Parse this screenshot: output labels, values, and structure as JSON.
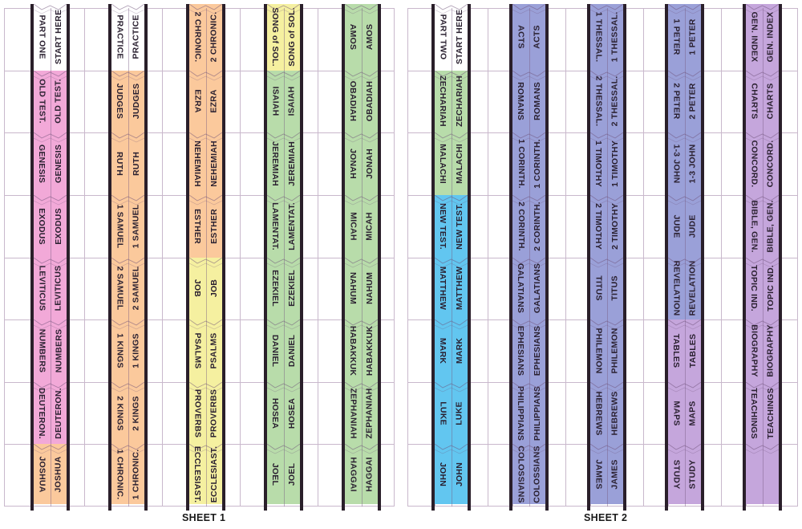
{
  "colors": {
    "white": "#ffffff",
    "pink": "#f2a9d8",
    "orange": "#fbc99c",
    "yellow": "#f5f0a0",
    "green": "#b8dcaa",
    "blue": "#62c6f0",
    "indigo": "#9aa0d8",
    "lavender": "#c5a6dc",
    "strip_border": "#2a1f2a",
    "grid_line": "#c9b8cc"
  },
  "sheets": [
    {
      "label": "SHEET 1",
      "strips": [
        {
          "tabs": [
            {
              "left": "PART ONE",
              "right": "START HERE",
              "color": "white"
            },
            {
              "left": "OLD TEST.",
              "right": "OLD TEST.",
              "color": "pink"
            },
            {
              "left": "GENESIS",
              "right": "GENESIS",
              "color": "pink"
            },
            {
              "left": "EXODUS",
              "right": "EXODUS",
              "color": "pink"
            },
            {
              "left": "LEVITICUS",
              "right": "LEVITICUS",
              "color": "pink"
            },
            {
              "left": "NUMBERS",
              "right": "NUMBERS",
              "color": "pink"
            },
            {
              "left": "DEUTERON.",
              "right": "DEUTERON.",
              "color": "pink"
            },
            {
              "left": "JOSHUA",
              "right": "JOSHUA",
              "color": "orange"
            }
          ]
        },
        {
          "tabs": [
            {
              "left": "PRACTICE",
              "right": "PRACTICE",
              "color": "white"
            },
            {
              "left": "JUDGES",
              "right": "JUDGES",
              "color": "orange"
            },
            {
              "left": "RUTH",
              "right": "RUTH",
              "color": "orange"
            },
            {
              "left": "1 SAMUEL",
              "right": "1 SAMUEL",
              "color": "orange"
            },
            {
              "left": "2 SAMUEL",
              "right": "2 SAMUEL",
              "color": "orange"
            },
            {
              "left": "1 KINGS",
              "right": "1 KINGS",
              "color": "orange"
            },
            {
              "left": "2 KINGS",
              "right": "2 KINGS",
              "color": "orange"
            },
            {
              "left": "1 CHRONIC.",
              "right": "1 CHRONIC.",
              "color": "orange"
            }
          ]
        },
        {
          "tabs": [
            {
              "left": "2 CHRONIC.",
              "right": "2 CHRONIC.",
              "color": "orange"
            },
            {
              "left": "EZRA",
              "right": "EZRA",
              "color": "orange"
            },
            {
              "left": "NEHEMIAH",
              "right": "NEHEMIAH",
              "color": "orange"
            },
            {
              "left": "ESTHER",
              "right": "ESTHER",
              "color": "orange"
            },
            {
              "left": "JOB",
              "right": "JOB",
              "color": "yellow"
            },
            {
              "left": "PSALMS",
              "right": "PSALMS",
              "color": "yellow"
            },
            {
              "left": "PROVERBS",
              "right": "PROVERBS",
              "color": "yellow"
            },
            {
              "left": "ECCLESIAST.",
              "right": "ECCLESIAST.",
              "color": "yellow"
            }
          ]
        },
        {
          "tabs": [
            {
              "left": "SONG of SOL.",
              "right": "SONG of SOL.",
              "color": "yellow"
            },
            {
              "left": "ISAIAH",
              "right": "ISAIAH",
              "color": "green"
            },
            {
              "left": "JEREMIAH",
              "right": "JEREMIAH",
              "color": "green"
            },
            {
              "left": "LAMENTAT.",
              "right": "LAMENTAT.",
              "color": "green"
            },
            {
              "left": "EZEKIEL",
              "right": "EZEKIEL",
              "color": "green"
            },
            {
              "left": "DANIEL",
              "right": "DANIEL",
              "color": "green"
            },
            {
              "left": "HOSEA",
              "right": "HOSEA",
              "color": "green"
            },
            {
              "left": "JOEL",
              "right": "JOEL",
              "color": "green"
            }
          ]
        },
        {
          "tabs": [
            {
              "left": "AMOS",
              "right": "AMOS",
              "color": "green"
            },
            {
              "left": "OBADIAH",
              "right": "OBADIAH",
              "color": "green"
            },
            {
              "left": "JONAH",
              "right": "JONAH",
              "color": "green"
            },
            {
              "left": "MICAH",
              "right": "MICAH",
              "color": "green"
            },
            {
              "left": "NAHUM",
              "right": "NAHUM",
              "color": "green"
            },
            {
              "left": "HABAKKUK",
              "right": "HABAKKUK",
              "color": "green"
            },
            {
              "left": "ZEPHANIAH",
              "right": "ZEPHANIAH",
              "color": "green"
            },
            {
              "left": "HAGGAI",
              "right": "HAGGAI",
              "color": "green"
            }
          ]
        }
      ]
    },
    {
      "label": "SHEET 2",
      "strips": [
        {
          "tabs": [
            {
              "left": "PART TWO",
              "right": "START HERE",
              "color": "white"
            },
            {
              "left": "ZECHARIAH",
              "right": "ZECHARIAH",
              "color": "green"
            },
            {
              "left": "MALACHI",
              "right": "MALACHI",
              "color": "green"
            },
            {
              "left": "NEW TEST.",
              "right": "NEW TEST.",
              "color": "blue"
            },
            {
              "left": "MATTHEW",
              "right": "MATTHEW",
              "color": "blue"
            },
            {
              "left": "MARK",
              "right": "MARK",
              "color": "blue"
            },
            {
              "left": "LUKE",
              "right": "LUKE",
              "color": "blue"
            },
            {
              "left": "JOHN",
              "right": "JOHN",
              "color": "blue"
            }
          ]
        },
        {
          "tabs": [
            {
              "left": "ACTS",
              "right": "ACTS",
              "color": "indigo"
            },
            {
              "left": "ROMANS",
              "right": "ROMANS",
              "color": "indigo"
            },
            {
              "left": "1 CORINTH.",
              "right": "1 CORINTH.",
              "color": "indigo"
            },
            {
              "left": "2 CORINTH.",
              "right": "2 CORINTH.",
              "color": "indigo"
            },
            {
              "left": "GALATIANS",
              "right": "GALATIANS",
              "color": "indigo"
            },
            {
              "left": "EPHESIANS",
              "right": "EPHESIANS",
              "color": "indigo"
            },
            {
              "left": "PHILIPPIANS",
              "right": "PHILIPPIANS",
              "color": "indigo"
            },
            {
              "left": "COLOSSIANS",
              "right": "COLOSSIANS",
              "color": "indigo"
            }
          ]
        },
        {
          "tabs": [
            {
              "left": "1 THESSAL.",
              "right": "1 THESSAL.",
              "color": "indigo"
            },
            {
              "left": "2 THESSAL.",
              "right": "2 THESSAL.",
              "color": "indigo"
            },
            {
              "left": "1 TIMOTHY",
              "right": "1 TIMOTHY",
              "color": "indigo"
            },
            {
              "left": "2 TIMOTHY",
              "right": "2 TIMOTHY",
              "color": "indigo"
            },
            {
              "left": "TITUS",
              "right": "TITUS",
              "color": "indigo"
            },
            {
              "left": "PHILEMON",
              "right": "PHILEMON",
              "color": "indigo"
            },
            {
              "left": "HEBREWS",
              "right": "HEBREWS",
              "color": "indigo"
            },
            {
              "left": "JAMES",
              "right": "JAMES",
              "color": "indigo"
            }
          ]
        },
        {
          "tabs": [
            {
              "left": "1 PETER",
              "right": "1 PETER",
              "color": "indigo"
            },
            {
              "left": "2 PETER",
              "right": "2 PETER",
              "color": "indigo"
            },
            {
              "left": "1-3 JOHN",
              "right": "1-3 JOHN",
              "color": "indigo"
            },
            {
              "left": "JUDE",
              "right": "JUDE",
              "color": "indigo"
            },
            {
              "left": "REVELATION",
              "right": "REVELATION",
              "color": "indigo"
            },
            {
              "left": "TABLES",
              "right": "TABLES",
              "color": "lavender"
            },
            {
              "left": "MAPS",
              "right": "MAPS",
              "color": "lavender"
            },
            {
              "left": "STUDY",
              "right": "STUDY",
              "color": "lavender"
            }
          ]
        },
        {
          "tabs": [
            {
              "left": "GEN. INDEX",
              "right": "GEN. INDEX",
              "color": "lavender"
            },
            {
              "left": "CHARTS",
              "right": "CHARTS",
              "color": "lavender"
            },
            {
              "left": "CONCORD.",
              "right": "CONCORD.",
              "color": "lavender"
            },
            {
              "left": "BIBLE, GEN.",
              "right": "BIBLE, GEN.",
              "color": "lavender"
            },
            {
              "left": "TOPIC IND.",
              "right": "TOPIC IND.",
              "color": "lavender"
            },
            {
              "left": "BIOGRAPHY",
              "right": "BIOGRAPHY",
              "color": "lavender"
            },
            {
              "left": "TEACHINGS",
              "right": "TEACHINGS",
              "color": "lavender"
            },
            {
              "left": "",
              "right": "",
              "color": "lavender"
            }
          ]
        }
      ]
    }
  ]
}
